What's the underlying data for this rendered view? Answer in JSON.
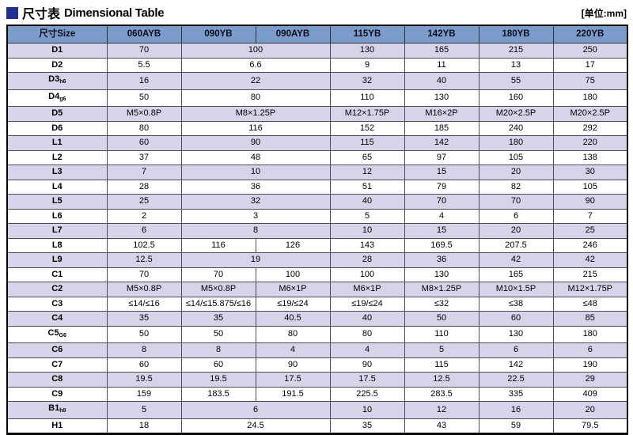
{
  "page": {
    "title_cjk": "尺寸表",
    "title_en": "Dimensional Table",
    "unit_label": "[单位:mm]"
  },
  "colors": {
    "accent_square": "#1e3191",
    "header_bg": "#7b9cca",
    "row_alt_bg": "#d9d3e9",
    "border": "#4c4c5a"
  },
  "table": {
    "header": [
      "尺寸Size",
      "060AYB",
      "090YB",
      "090AYB",
      "115YB",
      "142YB",
      "180YB",
      "220YB"
    ],
    "rows": [
      {
        "label": "D1",
        "sub": "",
        "cells": [
          {
            "v": "70",
            "span": 1
          },
          {
            "v": "100",
            "span": 2
          },
          {
            "v": "130",
            "span": 1
          },
          {
            "v": "165",
            "span": 1
          },
          {
            "v": "215",
            "span": 1
          },
          {
            "v": "250",
            "span": 1
          }
        ]
      },
      {
        "label": "D2",
        "sub": "",
        "cells": [
          {
            "v": "5.5",
            "span": 1
          },
          {
            "v": "6.6",
            "span": 2
          },
          {
            "v": "9",
            "span": 1
          },
          {
            "v": "11",
            "span": 1
          },
          {
            "v": "13",
            "span": 1
          },
          {
            "v": "17",
            "span": 1
          }
        ]
      },
      {
        "label": "D3",
        "sub": "h6",
        "cells": [
          {
            "v": "16",
            "span": 1
          },
          {
            "v": "22",
            "span": 2
          },
          {
            "v": "32",
            "span": 1
          },
          {
            "v": "40",
            "span": 1
          },
          {
            "v": "55",
            "span": 1
          },
          {
            "v": "75",
            "span": 1
          }
        ]
      },
      {
        "label": "D4",
        "sub": "g6",
        "cells": [
          {
            "v": "50",
            "span": 1
          },
          {
            "v": "80",
            "span": 2
          },
          {
            "v": "110",
            "span": 1
          },
          {
            "v": "130",
            "span": 1
          },
          {
            "v": "160",
            "span": 1
          },
          {
            "v": "180",
            "span": 1
          }
        ]
      },
      {
        "label": "D5",
        "sub": "",
        "cells": [
          {
            "v": "M5×0.8P",
            "span": 1
          },
          {
            "v": "M8×1.25P",
            "span": 2
          },
          {
            "v": "M12×1.75P",
            "span": 1
          },
          {
            "v": "M16×2P",
            "span": 1
          },
          {
            "v": "M20×2.5P",
            "span": 1
          },
          {
            "v": "M20×2.5P",
            "span": 1
          }
        ]
      },
      {
        "label": "D6",
        "sub": "",
        "cells": [
          {
            "v": "80",
            "span": 1
          },
          {
            "v": "116",
            "span": 2
          },
          {
            "v": "152",
            "span": 1
          },
          {
            "v": "185",
            "span": 1
          },
          {
            "v": "240",
            "span": 1
          },
          {
            "v": "292",
            "span": 1
          }
        ]
      },
      {
        "label": "L1",
        "sub": "",
        "cells": [
          {
            "v": "60",
            "span": 1
          },
          {
            "v": "90",
            "span": 2
          },
          {
            "v": "115",
            "span": 1
          },
          {
            "v": "142",
            "span": 1
          },
          {
            "v": "180",
            "span": 1
          },
          {
            "v": "220",
            "span": 1
          }
        ]
      },
      {
        "label": "L2",
        "sub": "",
        "cells": [
          {
            "v": "37",
            "span": 1
          },
          {
            "v": "48",
            "span": 2
          },
          {
            "v": "65",
            "span": 1
          },
          {
            "v": "97",
            "span": 1
          },
          {
            "v": "105",
            "span": 1
          },
          {
            "v": "138",
            "span": 1
          }
        ]
      },
      {
        "label": "L3",
        "sub": "",
        "cells": [
          {
            "v": "7",
            "span": 1
          },
          {
            "v": "10",
            "span": 2
          },
          {
            "v": "12",
            "span": 1
          },
          {
            "v": "15",
            "span": 1
          },
          {
            "v": "20",
            "span": 1
          },
          {
            "v": "30",
            "span": 1
          }
        ]
      },
      {
        "label": "L4",
        "sub": "",
        "cells": [
          {
            "v": "28",
            "span": 1
          },
          {
            "v": "36",
            "span": 2
          },
          {
            "v": "51",
            "span": 1
          },
          {
            "v": "79",
            "span": 1
          },
          {
            "v": "82",
            "span": 1
          },
          {
            "v": "105",
            "span": 1
          }
        ]
      },
      {
        "label": "L5",
        "sub": "",
        "cells": [
          {
            "v": "25",
            "span": 1
          },
          {
            "v": "32",
            "span": 2
          },
          {
            "v": "40",
            "span": 1
          },
          {
            "v": "70",
            "span": 1
          },
          {
            "v": "70",
            "span": 1
          },
          {
            "v": "90",
            "span": 1
          }
        ]
      },
      {
        "label": "L6",
        "sub": "",
        "cells": [
          {
            "v": "2",
            "span": 1
          },
          {
            "v": "3",
            "span": 2
          },
          {
            "v": "5",
            "span": 1
          },
          {
            "v": "4",
            "span": 1
          },
          {
            "v": "6",
            "span": 1
          },
          {
            "v": "7",
            "span": 1
          }
        ]
      },
      {
        "label": "L7",
        "sub": "",
        "cells": [
          {
            "v": "6",
            "span": 1
          },
          {
            "v": "8",
            "span": 2
          },
          {
            "v": "10",
            "span": 1
          },
          {
            "v": "15",
            "span": 1
          },
          {
            "v": "20",
            "span": 1
          },
          {
            "v": "25",
            "span": 1
          }
        ]
      },
      {
        "label": "L8",
        "sub": "",
        "cells": [
          {
            "v": "102.5",
            "span": 1
          },
          {
            "v": "116",
            "span": 1
          },
          {
            "v": "126",
            "span": 1
          },
          {
            "v": "143",
            "span": 1
          },
          {
            "v": "169.5",
            "span": 1
          },
          {
            "v": "207.5",
            "span": 1
          },
          {
            "v": "246",
            "span": 1
          }
        ]
      },
      {
        "label": "L9",
        "sub": "",
        "cells": [
          {
            "v": "12.5",
            "span": 1
          },
          {
            "v": "19",
            "span": 2
          },
          {
            "v": "28",
            "span": 1
          },
          {
            "v": "36",
            "span": 1
          },
          {
            "v": "42",
            "span": 1
          },
          {
            "v": "42",
            "span": 1
          }
        ]
      },
      {
        "label": "C1",
        "sub": "",
        "cells": [
          {
            "v": "70",
            "span": 1
          },
          {
            "v": "70",
            "span": 1
          },
          {
            "v": "100",
            "span": 1
          },
          {
            "v": "100",
            "span": 1
          },
          {
            "v": "130",
            "span": 1
          },
          {
            "v": "165",
            "span": 1
          },
          {
            "v": "215",
            "span": 1
          }
        ]
      },
      {
        "label": "C2",
        "sub": "",
        "cells": [
          {
            "v": "M5×0.8P",
            "span": 1
          },
          {
            "v": "M5×0.8P",
            "span": 1
          },
          {
            "v": "M6×1P",
            "span": 1
          },
          {
            "v": "M6×1P",
            "span": 1
          },
          {
            "v": "M8×1.25P",
            "span": 1
          },
          {
            "v": "M10×1.5P",
            "span": 1
          },
          {
            "v": "M12×1.75P",
            "span": 1
          }
        ]
      },
      {
        "label": "C3",
        "sub": "",
        "cells": [
          {
            "v": "≤14/≤16",
            "span": 1
          },
          {
            "v": "≤14/≤15.875/≤16",
            "span": 1
          },
          {
            "v": "≤19/≤24",
            "span": 1
          },
          {
            "v": "≤19/≤24",
            "span": 1
          },
          {
            "v": "≤32",
            "span": 1
          },
          {
            "v": "≤38",
            "span": 1
          },
          {
            "v": "≤48",
            "span": 1
          }
        ]
      },
      {
        "label": "C4",
        "sub": "",
        "cells": [
          {
            "v": "35",
            "span": 1
          },
          {
            "v": "35",
            "span": 1
          },
          {
            "v": "40.5",
            "span": 1
          },
          {
            "v": "40",
            "span": 1
          },
          {
            "v": "50",
            "span": 1
          },
          {
            "v": "60",
            "span": 1
          },
          {
            "v": "85",
            "span": 1
          }
        ]
      },
      {
        "label": "C5",
        "sub": "G6",
        "cells": [
          {
            "v": "50",
            "span": 1
          },
          {
            "v": "50",
            "span": 1
          },
          {
            "v": "80",
            "span": 1
          },
          {
            "v": "80",
            "span": 1
          },
          {
            "v": "110",
            "span": 1
          },
          {
            "v": "130",
            "span": 1
          },
          {
            "v": "180",
            "span": 1
          }
        ]
      },
      {
        "label": "C6",
        "sub": "",
        "cells": [
          {
            "v": "8",
            "span": 1
          },
          {
            "v": "8",
            "span": 1
          },
          {
            "v": "4",
            "span": 1
          },
          {
            "v": "4",
            "span": 1
          },
          {
            "v": "5",
            "span": 1
          },
          {
            "v": "6",
            "span": 1
          },
          {
            "v": "6",
            "span": 1
          }
        ]
      },
      {
        "label": "C7",
        "sub": "",
        "cells": [
          {
            "v": "60",
            "span": 1
          },
          {
            "v": "60",
            "span": 1
          },
          {
            "v": "90",
            "span": 1
          },
          {
            "v": "90",
            "span": 1
          },
          {
            "v": "115",
            "span": 1
          },
          {
            "v": "142",
            "span": 1
          },
          {
            "v": "190",
            "span": 1
          }
        ]
      },
      {
        "label": "C8",
        "sub": "",
        "cells": [
          {
            "v": "19.5",
            "span": 1
          },
          {
            "v": "19.5",
            "span": 1
          },
          {
            "v": "17.5",
            "span": 1
          },
          {
            "v": "17.5",
            "span": 1
          },
          {
            "v": "12.5",
            "span": 1
          },
          {
            "v": "22.5",
            "span": 1
          },
          {
            "v": "29",
            "span": 1
          }
        ]
      },
      {
        "label": "C9",
        "sub": "",
        "cells": [
          {
            "v": "159",
            "span": 1
          },
          {
            "v": "183.5",
            "span": 1
          },
          {
            "v": "191.5",
            "span": 1
          },
          {
            "v": "225.5",
            "span": 1
          },
          {
            "v": "283.5",
            "span": 1
          },
          {
            "v": "335",
            "span": 1
          },
          {
            "v": "409",
            "span": 1
          }
        ]
      },
      {
        "label": "B1",
        "sub": "h9",
        "cells": [
          {
            "v": "5",
            "span": 1
          },
          {
            "v": "6",
            "span": 2
          },
          {
            "v": "10",
            "span": 1
          },
          {
            "v": "12",
            "span": 1
          },
          {
            "v": "16",
            "span": 1
          },
          {
            "v": "20",
            "span": 1
          }
        ]
      },
      {
        "label": "H1",
        "sub": "",
        "cells": [
          {
            "v": "18",
            "span": 1
          },
          {
            "v": "24.5",
            "span": 2
          },
          {
            "v": "35",
            "span": 1
          },
          {
            "v": "43",
            "span": 1
          },
          {
            "v": "59",
            "span": 1
          },
          {
            "v": "79.5",
            "span": 1
          }
        ]
      }
    ]
  }
}
